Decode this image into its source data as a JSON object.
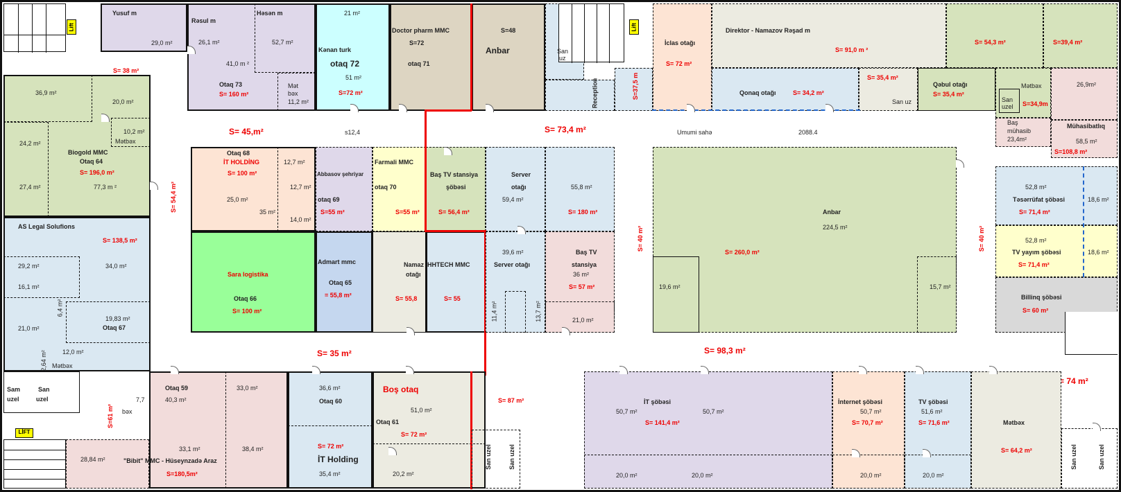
{
  "colors": {
    "lavender": "#dfd8ea",
    "cyan": "#ccffff",
    "tan": "#ddd5c2",
    "lightblue": "#dae8f2",
    "peach": "#fde4d4",
    "olive": "#d6e3bc",
    "green": "#99ff99",
    "yellow": "#ffffcc",
    "pink": "#f2dcdb",
    "blue": "#c5d7ef",
    "gray": "#d9d9d9",
    "beige": "#ecebe1",
    "red": "#e00000"
  },
  "labels": {
    "yusuf": "Yusuf m",
    "yusuf_a": "29,0 m²",
    "resul": "Rəsul m",
    "resul_a": "26,1 m²",
    "hesen": "Həsən m",
    "hesen_a": "52,7 m²",
    "r41": "41,0 m ²",
    "otaq73": "Otaq 73",
    "otaq73_s": "S= 160 m²",
    "metbex73": "Mət",
    "metbex73b": "bəx",
    "m11": "11,2 m²",
    "s38": "S= 38 m²",
    "kenan": "Kənan turk",
    "m21": "21 m²",
    "otaq72": "otaq 72",
    "m51": "51 m²",
    "s72a": "S=72 m²",
    "doctor": "Doctor pharm MMC",
    "s72": "S=72",
    "otaq71": "otaq 71",
    "s48": "S=48",
    "anbar": "Anbar",
    "sanuz": "San",
    "sanuz2": "uz",
    "reception": "Reception",
    "s375": "S=37,5 m",
    "iclas": "İclas otağı",
    "iclas_s": "S= 72 m²",
    "direktor": "Direktor  - Namazov  Rəşad m",
    "dir_s": "S= 91,0 m ²",
    "s543": "S= 54,3 m²",
    "s394": "S=39,4 m²",
    "s354a": "S= 35,4 m²",
    "qonaq": "Qonaq otağı",
    "qonaq_s": "S=  34,2 m²",
    "sanuz3": "San uz",
    "qebul": "Qəbul  otağı",
    "qebul_s": "S= 35,4 m²",
    "metbexR": "Mətbəx",
    "san_uzel": "San",
    "uzel": "uzel",
    "s349": "S=34,9m",
    "m269": "26,9m²",
    "bas_muh": "Baş",
    "bas_muh2": "mühasib",
    "m234": "23,4m²",
    "muhasib": "Mühasibatlıq",
    "m585": "58,5 m²",
    "s1088": "S=108,8 m²",
    "m369": "36,9 m²",
    "m200": "20,0 m²",
    "m102": "10,2 m²",
    "metbex_l": "Mətbəx",
    "m242": "24,2 m²",
    "biogold": "Biogold MMC",
    "otaq64": "Otaq  64",
    "s196": "S=  196,0 m²",
    "m274": "27,4 m²",
    "m773": "77,3 m ²",
    "s45": "S= 45,m²",
    "s124": "s12,4",
    "s734": "S= 73,4 m²",
    "umumi": "Umumi sahə",
    "umumi_v": "2088.4",
    "otaq68": "Otaq 68",
    "it_holding": "İT HOLDİNG",
    "s100a": "S= 100 m²",
    "m127a": "12,7 m²",
    "m127b": "12,7 m²",
    "m250": "25,0 m²",
    "m35": "35 m²",
    "m140": "14,0 m²",
    "abbasov": "Abbasov şehriyar",
    "otaq69": "otaq 69",
    "s55a": "S=55 m²",
    "farmali": "Farmali MMC",
    "otaq70": "otaq 70",
    "s55b": "S=55 m²",
    "bastv": "Baş TV  stansiya",
    "sobesi": "şöbəsi",
    "s564": "S= 56,4 m²",
    "server": "Server",
    "otagi": "otağı",
    "m594": "59,4 m²",
    "m558": "55,8 m²",
    "s180": "S= 180 m²",
    "anbar2": "Anbar",
    "m2245": "224,5 m²",
    "s260": "S= 260,0 m²",
    "m196": "19,6 m²",
    "m157": "15,7 m²",
    "s40a": "S= 40 m²",
    "s40b": "S= 40 m²",
    "s544": "S= 54,4 m²",
    "m528a": "52,8 m²",
    "teserrufat": "Təsərrüfat şöbəsi",
    "s714a": "S= 71,4 m²",
    "m186a": "18,6 m²",
    "m528b": "52,8 m²",
    "tvyayim": "TV yayım  şöbəsi",
    "s714b": "S= 71,4 m²",
    "m186b": "18,6 m²",
    "billinq": "Billinq şöbəsi",
    "s60": "S= 60 m²",
    "aslegal": "AS  Legal Solufions",
    "s1385": "S= 138,5 m²",
    "m292": "29,2 m²",
    "m340": "34,0 m²",
    "m161": "16,1 m²",
    "m64": "6,4 m²",
    "m1983": "19,83 m²",
    "otaq67": "Otaq 67",
    "m210": "21,0 m²",
    "m120": "12,0 m²",
    "m264": "2,64 m²",
    "metbex67": "Mətbəx",
    "sara": "Sara logistika",
    "otaq66": "Otaq  66",
    "s100b": "S= 100 m²",
    "admart": "Admart mmc",
    "otaq65": "Otaq  65",
    "s558": "= 55,8 m²",
    "namaz": "Namaz",
    "namaz2": "otağı",
    "s558b": "S= 55,8",
    "hhtech": "HHTECH MMC",
    "s55c": "S= 55",
    "m396": "39,6 m²",
    "server2": "Server  otağı",
    "m114": "11,4 m²",
    "m137": "13,7 m²",
    "bastv2": "Baş   TV",
    "stansiya": "stansiya",
    "m36": "36 m²",
    "s57": "S= 57 m²",
    "m210b": "21,0 m²",
    "s35": "S= 35 m²",
    "s983": "S= 98,3 m²",
    "s74": "S= 74 m²",
    "sam": "Sam",
    "uzel2": "uzel",
    "san2": "San",
    "uzel3": "uzel",
    "lift": "LİFT",
    "lift2": "Lift",
    "lift3": "Lift",
    "s61": "S=61 m²",
    "otaq59": "Otaq  59",
    "m403": "40,3 m²",
    "m330": "33,0 m²",
    "m77": "7,7",
    "bex": "bəx",
    "m331": "33,1 m²",
    "m384": "38,4 m²",
    "m2884": "28,84 m²",
    "bibit": "\"Bibit\" MMC - Hüseynzadə  Araz",
    "s1805": "S=180,5m²",
    "m366": "36,6 m²",
    "otaq60": "Otaq  60",
    "s72b": "S= 72  m²",
    "itholding2": "İT Holding",
    "m354": "35,4 m²",
    "bos": "Boş otaq",
    "m510": "51,0 m²",
    "otaq61": "Otaq 61",
    "s72c": "S= 72 m²",
    "m202": "20,2 m²",
    "s87": "S= 87 m²",
    "sanuz_b1": "San  uzel",
    "sanuz_b2": "San  uzel",
    "it_sobesi": "İT  şöbəsi",
    "m507a": "50,7 m²",
    "m507b": "50,7 m²",
    "s1414": "S= 141,4 m²",
    "m200b": "20,0 m²",
    "m200c": "20,0 m²",
    "internet": "İnternet  şöbəsi",
    "m507c": "50,7 m²",
    "s707": "S= 70,7 m²",
    "m200d": "20,0 m²",
    "tv_sobesi": "TV  şöbəsi",
    "m516": "51,6 m²",
    "s716": "S= 71,6 m²",
    "m200e": "20,0 m²",
    "metbexB": "Mətbəx",
    "s642": "S= 64,2 m²",
    "sanuz_r1": "San  uzel",
    "sanuz_r2": "San  uzel"
  }
}
